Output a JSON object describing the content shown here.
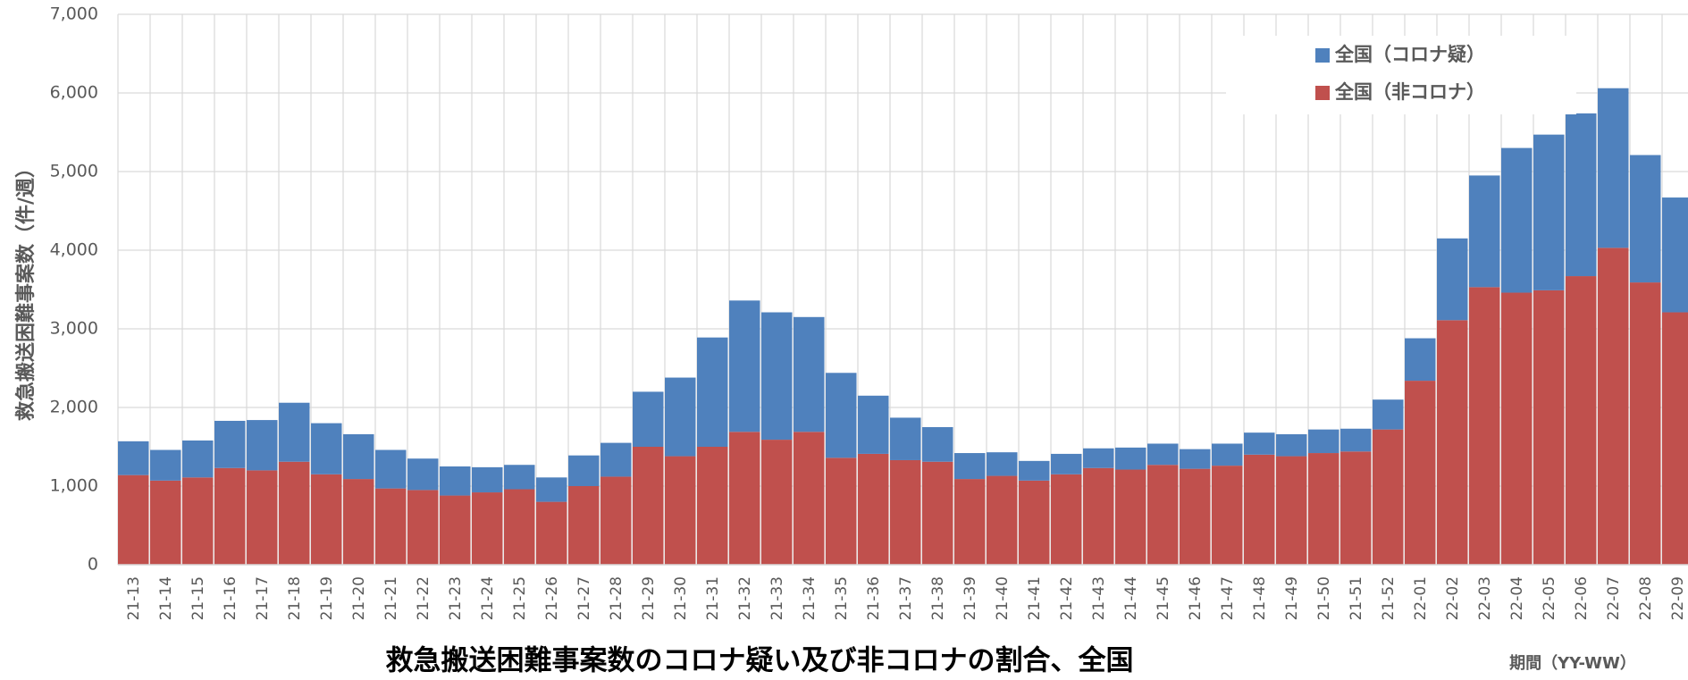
{
  "chart_data": {
    "type": "stacked_bar",
    "title": "救急搬送困難事案数のコロナ疑い及び非コロナの割合、全国",
    "y_label": "救急搬送困難事案数（件/週）",
    "x_label": "期間（YY-WW）",
    "categories": [
      "21-13",
      "21-14",
      "21-15",
      "21-16",
      "21-17",
      "21-18",
      "21-19",
      "21-20",
      "21-21",
      "21-22",
      "21-23",
      "21-24",
      "21-25",
      "21-26",
      "21-27",
      "21-28",
      "21-29",
      "21-30",
      "21-31",
      "21-32",
      "21-33",
      "21-34",
      "21-35",
      "21-36",
      "21-37",
      "21-38",
      "21-39",
      "21-40",
      "21-41",
      "21-42",
      "21-43",
      "21-44",
      "21-45",
      "21-46",
      "21-47",
      "21-48",
      "21-49",
      "21-50",
      "21-51",
      "21-52",
      "22-01",
      "22-02",
      "22-03",
      "22-04",
      "22-05",
      "22-06",
      "22-07",
      "22-08",
      "22-09"
    ],
    "series": [
      {
        "name": "全国（非コロナ）",
        "color": "#c0504d",
        "values": [
          1140,
          1070,
          1110,
          1230,
          1200,
          1310,
          1150,
          1090,
          970,
          950,
          880,
          920,
          960,
          800,
          1000,
          1120,
          1500,
          1380,
          1500,
          1690,
          1590,
          1690,
          1360,
          1410,
          1330,
          1310,
          1090,
          1130,
          1070,
          1150,
          1230,
          1210,
          1270,
          1220,
          1260,
          1400,
          1380,
          1420,
          1440,
          1720,
          2340,
          3110,
          3530,
          3460,
          3490,
          3670,
          4030,
          3590,
          3210
        ]
      },
      {
        "name": "全国（コロナ疑）",
        "color": "#4f81bd",
        "values": [
          430,
          390,
          470,
          600,
          640,
          750,
          650,
          570,
          490,
          400,
          370,
          320,
          310,
          310,
          390,
          430,
          700,
          1000,
          1390,
          1670,
          1620,
          1460,
          1080,
          740,
          540,
          440,
          330,
          300,
          250,
          260,
          250,
          280,
          270,
          250,
          280,
          280,
          280,
          300,
          290,
          380,
          540,
          1040,
          1420,
          1840,
          1980,
          2070,
          2030,
          1620,
          1460
        ]
      }
    ],
    "ylim": [
      0,
      7000
    ],
    "yticks": [
      0,
      {
        "value": 1000,
        "label": "1,000"
      },
      {
        "value": 2000,
        "label": "2,000"
      },
      {
        "value": 3000,
        "label": "3,000"
      },
      {
        "value": 4000,
        "label": "4,000"
      },
      {
        "value": 5000,
        "label": "5,000"
      },
      {
        "value": 6000,
        "label": "6,000"
      },
      {
        "value": 7000,
        "label": "7,000"
      }
    ],
    "grid": true,
    "legend": "upper right"
  }
}
